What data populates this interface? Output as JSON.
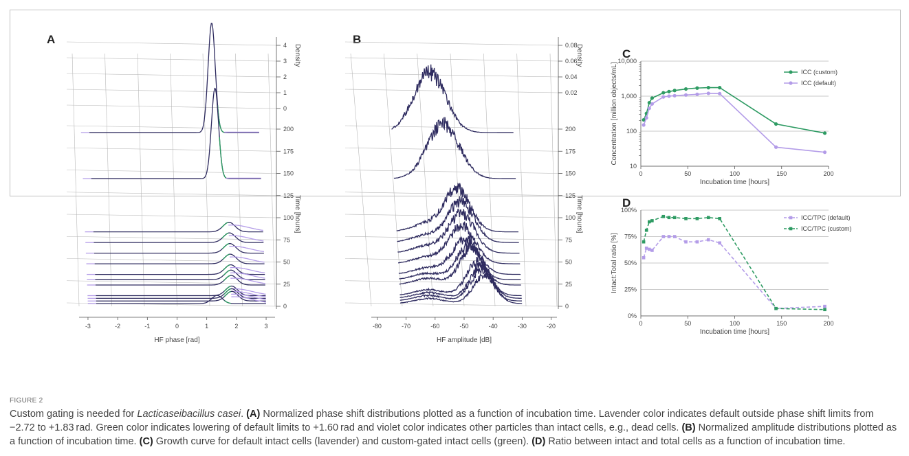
{
  "figure_label": "FIGURE 2",
  "caption": {
    "title_pre": "Custom gating is needed for ",
    "title_species": "Lacticaseibacillus casei",
    "title_post": ". ",
    "parts": [
      {
        "tag": "(A)",
        "text": " Normalized phase shift distributions plotted as a function of incubation time. Lavender color indicates default outside phase shift limits from −2.72 to +1.83 rad. Green color indicates lowering of default limits to +1.60 rad and violet color indicates other particles than intact cells, e.g., dead cells. "
      },
      {
        "tag": "(B)",
        "text": " Normalized amplitude distributions plotted as a function of incubation time. "
      },
      {
        "tag": "(C)",
        "text": " Growth curve for default intact cells (lavender) and custom-gated intact cells (green). "
      },
      {
        "tag": "(D)",
        "text": " Ratio between intact and total cells as a function of incubation time."
      }
    ]
  },
  "colors": {
    "violet": "#2e2b5f",
    "lavender": "#b39ce8",
    "green": "#2e9b63",
    "grid": "#b8b8b8",
    "axis": "#555555"
  },
  "chart_data": [
    {
      "panel": "A",
      "type": "line",
      "xlabel": "HF phase [rad]",
      "zlabel": "Time [hours]",
      "density_label": "Density",
      "xlim": [
        -3.3,
        3.3
      ],
      "x_ticks": [
        "-3",
        "-2",
        "-1",
        "0",
        "1",
        "2",
        "3"
      ],
      "time_ticks": [
        "0",
        "25",
        "50",
        "75",
        "100",
        "125",
        "150",
        "175",
        "200"
      ],
      "density_ticks": [
        "0",
        "1",
        "2",
        "3",
        "4"
      ],
      "time_points": [
        3,
        6,
        9,
        12,
        24,
        30,
        36,
        48,
        60,
        72,
        84,
        144,
        196
      ],
      "curves": [
        {
          "time": 196,
          "x_start": -2.72,
          "peak_x": 1.4,
          "peak_h": 4.0,
          "width": 0.12,
          "tail": "narrow"
        },
        {
          "time": 144,
          "x_start": -2.72,
          "peak_x": 1.45,
          "peak_h": 3.3,
          "width": 0.12,
          "tail": "narrow"
        },
        {
          "time": 84,
          "x_start": -2.72,
          "peak_x": 1.85,
          "peak_h": 0.35,
          "width": 0.2,
          "tail": "broad"
        },
        {
          "time": 72,
          "x_start": -2.72,
          "peak_x": 1.85,
          "peak_h": 0.35,
          "width": 0.2,
          "tail": "broad"
        },
        {
          "time": 60,
          "x_start": -2.72,
          "peak_x": 1.85,
          "peak_h": 0.35,
          "width": 0.2,
          "tail": "broad"
        },
        {
          "time": 48,
          "x_start": -2.72,
          "peak_x": 1.85,
          "peak_h": 0.35,
          "width": 0.2,
          "tail": "broad"
        },
        {
          "time": 36,
          "x_start": -2.72,
          "peak_x": 1.85,
          "peak_h": 0.35,
          "width": 0.2,
          "tail": "broad"
        },
        {
          "time": 30,
          "x_start": -2.72,
          "peak_x": 1.85,
          "peak_h": 0.35,
          "width": 0.2,
          "tail": "broad"
        },
        {
          "time": 24,
          "x_start": -2.72,
          "peak_x": 1.85,
          "peak_h": 0.35,
          "width": 0.2,
          "tail": "broad"
        },
        {
          "time": 12,
          "x_start": -2.72,
          "peak_x": 1.85,
          "peak_h": 0.35,
          "width": 0.2,
          "tail": "broad"
        },
        {
          "time": 9,
          "x_start": -2.72,
          "peak_x": 1.85,
          "peak_h": 0.35,
          "width": 0.2,
          "tail": "broad"
        },
        {
          "time": 6,
          "x_start": -2.72,
          "peak_x": 1.85,
          "peak_h": 0.35,
          "width": 0.2,
          "tail": "broad"
        },
        {
          "time": 3,
          "x_start": -2.72,
          "peak_x": 1.35,
          "peak_h": 0.3,
          "width": 0.18,
          "tail": "broad"
        }
      ]
    },
    {
      "panel": "B",
      "type": "line",
      "xlabel": "HF amplitude [dB]",
      "zlabel": "Time [hours]",
      "density_label": "Density",
      "xlim": [
        -82,
        -18
      ],
      "x_ticks": [
        "-80",
        "-70",
        "-60",
        "-50",
        "-40",
        "-30",
        "-20"
      ],
      "time_ticks": [
        "0",
        "25",
        "50",
        "75",
        "100",
        "125",
        "150",
        "175",
        "200"
      ],
      "density_ticks": [
        "0.02",
        "0.04",
        "0.06",
        "0.08"
      ],
      "time_points": [
        3,
        6,
        9,
        12,
        24,
        30,
        36,
        48,
        60,
        72,
        84,
        144,
        196
      ],
      "curves": [
        {
          "time": 196,
          "x_range": [
            -72,
            -30
          ],
          "peak_x": -59,
          "peak_h": 0.068,
          "width": 5.5
        },
        {
          "time": 144,
          "x_range": [
            -72,
            -30
          ],
          "peak_x": -55,
          "peak_h": 0.062,
          "width": 5.5
        },
        {
          "time": 84,
          "x_range": [
            -72,
            -30
          ],
          "peak_x": -51,
          "peak_h": 0.048,
          "width": 4.5
        },
        {
          "time": 72,
          "x_range": [
            -72,
            -30
          ],
          "peak_x": -50,
          "peak_h": 0.046,
          "width": 4.5
        },
        {
          "time": 60,
          "x_range": [
            -72,
            -30
          ],
          "peak_x": -50,
          "peak_h": 0.044,
          "width": 4.5
        },
        {
          "time": 48,
          "x_range": [
            -72,
            -30
          ],
          "peak_x": -50,
          "peak_h": 0.042,
          "width": 4.5
        },
        {
          "time": 36,
          "x_range": [
            -72,
            -30
          ],
          "peak_x": -49,
          "peak_h": 0.04,
          "width": 4.5
        },
        {
          "time": 30,
          "x_range": [
            -72,
            -30
          ],
          "peak_x": -48,
          "peak_h": 0.04,
          "width": 4.0
        },
        {
          "time": 24,
          "x_range": [
            -72,
            -30
          ],
          "peak_x": -47,
          "peak_h": 0.042,
          "width": 4.0
        },
        {
          "time": 12,
          "x_range": [
            -72,
            -30
          ],
          "peak_x": -45,
          "peak_h": 0.038,
          "width": 4.0
        },
        {
          "time": 9,
          "x_range": [
            -72,
            -30
          ],
          "peak_x": -44,
          "peak_h": 0.036,
          "width": 3.8
        },
        {
          "time": 6,
          "x_range": [
            -72,
            -30
          ],
          "peak_x": -44,
          "peak_h": 0.034,
          "width": 3.8
        },
        {
          "time": 3,
          "x_range": [
            -72,
            -30
          ],
          "peak_x": -43,
          "peak_h": 0.032,
          "width": 3.8
        }
      ]
    },
    {
      "panel": "C",
      "type": "line",
      "xlabel": "Incubation time [hours]",
      "ylabel": "Concentration [million objects/mL]",
      "y_scale": "log",
      "xlim": [
        0,
        200
      ],
      "ylim": [
        10,
        10000
      ],
      "x_ticks": [
        "0",
        "50",
        "100",
        "150",
        "200"
      ],
      "y_ticks": [
        "10",
        "100",
        "1,000",
        "10,000"
      ],
      "legend_position": "top-right",
      "grid": true,
      "series": [
        {
          "name": "ICC (custom)",
          "color": "#2e9b63",
          "x": [
            3,
            6,
            9,
            12,
            24,
            30,
            36,
            48,
            60,
            72,
            84,
            144,
            196
          ],
          "y": [
            210,
            320,
            650,
            880,
            1250,
            1350,
            1450,
            1600,
            1700,
            1750,
            1750,
            160,
            88
          ]
        },
        {
          "name": "ICC (default)",
          "color": "#b39ce8",
          "x": [
            3,
            6,
            9,
            12,
            24,
            30,
            36,
            48,
            60,
            72,
            84,
            144,
            196
          ],
          "y": [
            150,
            240,
            450,
            600,
            950,
            1000,
            1030,
            1080,
            1130,
            1200,
            1180,
            35,
            25
          ]
        }
      ]
    },
    {
      "panel": "D",
      "type": "line",
      "xlabel": "Incubation time [hours]",
      "ylabel": "Intact:Total ratio [%]",
      "xlim": [
        0,
        200
      ],
      "ylim": [
        0,
        100
      ],
      "x_ticks": [
        "0",
        "50",
        "100",
        "150",
        "200"
      ],
      "y_ticks": [
        "0%",
        "25%",
        "50%",
        "75%",
        "100%"
      ],
      "legend_position": "top-right",
      "grid": true,
      "series": [
        {
          "name": "ICC/TPC (default)",
          "color": "#b39ce8",
          "dashed": true,
          "x": [
            3,
            6,
            9,
            12,
            24,
            30,
            36,
            48,
            60,
            72,
            84,
            144,
            196
          ],
          "y": [
            55,
            64,
            63,
            62,
            75,
            75,
            75,
            70,
            70,
            72,
            69,
            7,
            9
          ]
        },
        {
          "name": "ICC/TPC (custom)",
          "color": "#2e9b63",
          "dashed": true,
          "x": [
            3,
            6,
            9,
            12,
            24,
            30,
            36,
            48,
            60,
            72,
            84,
            144,
            196
          ],
          "y": [
            70,
            81,
            89,
            90,
            94,
            93,
            93,
            92,
            92,
            93,
            92,
            7,
            6
          ]
        }
      ]
    }
  ]
}
